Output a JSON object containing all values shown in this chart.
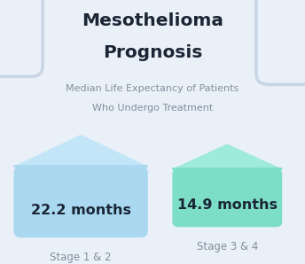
{
  "title_line1": "Mesothelioma",
  "title_line2": "Prognosis",
  "subtitle_line1": "Median Life Expectancy of Patients",
  "subtitle_line2": "Who Undergo Treatment",
  "bar1_value": "22.2 months",
  "bar1_label": "Stage 1 & 2",
  "bar2_value": "14.9 months",
  "bar2_label": "Stage 3 & 4",
  "bar1_color": "#aad8f0",
  "bar1_roof_color": "#c2e5f8",
  "bar2_color": "#7ddec8",
  "bar2_roof_color": "#9eeadb",
  "bg_color": "#eaf0f7",
  "title_color": "#1a2535",
  "subtitle_color": "#8090a0",
  "value_color": "#1a2535",
  "label_color": "#8090a0",
  "decor_color": "#c8d5e5",
  "figw": 3.44,
  "figh": 2.98,
  "dpi": 100
}
